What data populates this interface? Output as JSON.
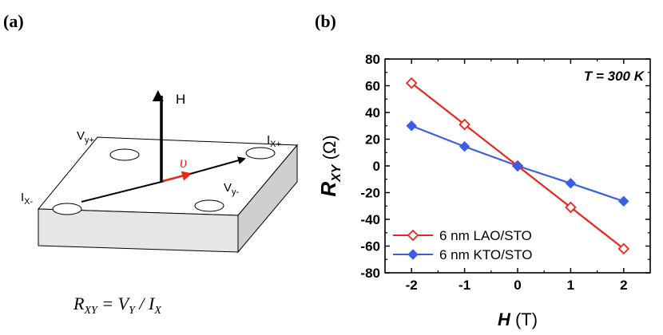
{
  "panels": {
    "a_label": "(a)",
    "b_label": "(b)"
  },
  "diagram": {
    "h_label": "H",
    "v_label": "υ",
    "vy_plus": "V",
    "vy_plus_sub": "y+",
    "vy_minus": "V",
    "vy_minus_sub": "y-",
    "ix_plus": "I",
    "ix_plus_sub": "X+",
    "ix_minus": "I",
    "ix_minus_sub": "X-",
    "formula_lhs": "R",
    "formula_lhs_sub": "XY",
    "formula_eq": " = V",
    "formula_mid_sub": "Y",
    "formula_div": " / I",
    "formula_rhs_sub": "X"
  },
  "colors": {
    "lao": "#e8261c",
    "kto": "#3a5fe0",
    "arrow": "#000000",
    "velocity": "#e8261c",
    "block_side": "#d8d8d8"
  },
  "chart_data": {
    "type": "line",
    "x": [
      -2,
      -1,
      0,
      1,
      2
    ],
    "series": [
      {
        "name": "6 nm LAO/STO",
        "marker": "open-diamond",
        "values": [
          62,
          31,
          0,
          -31,
          -62
        ]
      },
      {
        "name": "6 nm KTO/STO",
        "marker": "filled-diamond",
        "values": [
          30,
          14.5,
          0,
          -13,
          -26.5
        ]
      }
    ],
    "title": "",
    "annotation": "T = 300 K",
    "xlabel_main": "H",
    "xlabel_unit": " (T)",
    "ylabel_main": "R",
    "ylabel_sub": "XY",
    "ylabel_unit": " (Ω)",
    "xlim": [
      -2.5,
      2.5
    ],
    "ylim": [
      -80,
      80
    ],
    "xticks": [
      -2,
      -1,
      0,
      1,
      2
    ],
    "yticks": [
      80,
      60,
      40,
      20,
      0,
      -20,
      -40,
      -60,
      -80
    ],
    "legend_position": "bottom-left"
  }
}
